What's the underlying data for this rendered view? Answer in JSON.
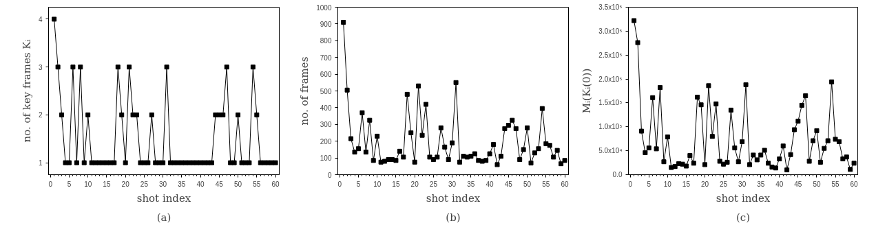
{
  "chart_data": [
    {
      "type": "line",
      "title": "(a)",
      "xlabel": "shot index",
      "ylabel": "no. of key frames Kᵢ",
      "marker": "square",
      "line_style": "solid",
      "grid": false,
      "x": [
        1,
        2,
        3,
        4,
        5,
        6,
        7,
        8,
        9,
        10,
        11,
        12,
        13,
        14,
        15,
        16,
        17,
        18,
        19,
        20,
        21,
        22,
        23,
        24,
        25,
        26,
        27,
        28,
        29,
        30,
        31,
        32,
        33,
        34,
        35,
        36,
        37,
        38,
        39,
        40,
        41,
        42,
        43,
        44,
        45,
        46,
        47,
        48,
        49,
        50,
        51,
        52,
        53,
        54,
        55,
        56,
        57,
        58,
        59,
        60
      ],
      "series": [
        {
          "color": "#000000",
          "values": [
            4,
            3,
            2,
            1,
            1,
            3,
            1,
            3,
            1,
            2,
            1,
            1,
            1,
            1,
            1,
            1,
            1,
            3,
            2,
            1,
            3,
            2,
            2,
            1,
            1,
            1,
            2,
            1,
            1,
            1,
            3,
            1,
            1,
            1,
            1,
            1,
            1,
            1,
            1,
            1,
            1,
            1,
            1,
            2,
            2,
            2,
            3,
            1,
            1,
            2,
            1,
            1,
            1,
            3,
            2,
            1,
            1,
            1,
            1,
            1
          ]
        }
      ],
      "xlim": [
        -0.5,
        61
      ],
      "xticks": [
        0,
        5,
        10,
        15,
        20,
        25,
        30,
        35,
        40,
        45,
        50,
        55,
        60
      ],
      "ylim": [
        0.75,
        4.25
      ],
      "yticks": [
        1,
        2,
        3,
        4
      ]
    },
    {
      "type": "line",
      "title": "(b)",
      "xlabel": "shot index",
      "ylabel": "no. of frames",
      "marker": "square",
      "line_style": "solid",
      "grid": false,
      "x": [
        1,
        2,
        3,
        4,
        5,
        6,
        7,
        8,
        9,
        10,
        11,
        12,
        13,
        14,
        15,
        16,
        17,
        18,
        19,
        20,
        21,
        22,
        23,
        24,
        25,
        26,
        27,
        28,
        29,
        30,
        31,
        32,
        33,
        34,
        35,
        36,
        37,
        38,
        39,
        40,
        41,
        42,
        43,
        44,
        45,
        46,
        47,
        48,
        49,
        50,
        51,
        52,
        53,
        54,
        55,
        56,
        57,
        58,
        59,
        60
      ],
      "series": [
        {
          "color": "#000000",
          "values": [
            910,
            505,
            215,
            135,
            155,
            370,
            135,
            325,
            85,
            230,
            75,
            80,
            90,
            90,
            85,
            140,
            105,
            480,
            250,
            75,
            530,
            235,
            420,
            105,
            90,
            105,
            280,
            165,
            90,
            190,
            550,
            75,
            110,
            105,
            110,
            125,
            85,
            80,
            85,
            125,
            180,
            60,
            110,
            275,
            295,
            325,
            275,
            90,
            150,
            280,
            70,
            130,
            155,
            395,
            185,
            175,
            105,
            145,
            65,
            85
          ]
        }
      ],
      "xlim": [
        -0.5,
        61
      ],
      "xticks": [
        0,
        5,
        10,
        15,
        20,
        25,
        30,
        35,
        40,
        45,
        50,
        55,
        60
      ],
      "ylim": [
        0,
        1000
      ],
      "yticks": [
        0,
        100,
        200,
        300,
        400,
        500,
        600,
        700,
        800,
        900,
        1000
      ]
    },
    {
      "type": "line",
      "title": "(c)",
      "xlabel": "shot index",
      "ylabel": "Mᵢ(Kᵢ(0))",
      "marker": "square",
      "line_style": "solid",
      "grid": false,
      "x": [
        1,
        2,
        3,
        4,
        5,
        6,
        7,
        8,
        9,
        10,
        11,
        12,
        13,
        14,
        15,
        16,
        17,
        18,
        19,
        20,
        21,
        22,
        23,
        24,
        25,
        26,
        27,
        28,
        29,
        30,
        31,
        32,
        33,
        34,
        35,
        36,
        37,
        38,
        39,
        40,
        41,
        42,
        43,
        44,
        45,
        46,
        47,
        48,
        49,
        50,
        51,
        52,
        53,
        54,
        55,
        56,
        57,
        58,
        59,
        60
      ],
      "series": [
        {
          "color": "#000000",
          "values": [
            322000,
            276000,
            91000,
            46000,
            56000,
            161000,
            54000,
            182000,
            27000,
            79000,
            15000,
            17000,
            23000,
            22000,
            18000,
            40000,
            24000,
            162000,
            146000,
            21000,
            186000,
            80000,
            148000,
            28000,
            22000,
            26000,
            135000,
            56000,
            27000,
            69000,
            188000,
            21000,
            41000,
            31000,
            41000,
            51000,
            24000,
            16000,
            14000,
            33000,
            60000,
            10000,
            42000,
            94000,
            112000,
            145000,
            165000,
            28000,
            71000,
            92000,
            26000,
            55000,
            71000,
            194000,
            74000,
            69000,
            33000,
            37000,
            11000,
            24000
          ]
        }
      ],
      "xlim": [
        -0.5,
        61
      ],
      "xticks": [
        0,
        5,
        10,
        15,
        20,
        25,
        30,
        35,
        40,
        45,
        50,
        55,
        60
      ],
      "ylim": [
        0,
        350000
      ],
      "yticks": [
        {
          "value": 0,
          "label": "0.0"
        },
        {
          "value": 50000,
          "label": "5.0x10⁴"
        },
        {
          "value": 100000,
          "label": "1.0x10⁵"
        },
        {
          "value": 150000,
          "label": "1.5x10⁵"
        },
        {
          "value": 200000,
          "label": "2.0x10⁵"
        },
        {
          "value": 250000,
          "label": "2.5x10⁵"
        },
        {
          "value": 300000,
          "label": "3.0x10⁵"
        },
        {
          "value": 350000,
          "label": "3.5x10⁵"
        }
      ]
    }
  ]
}
